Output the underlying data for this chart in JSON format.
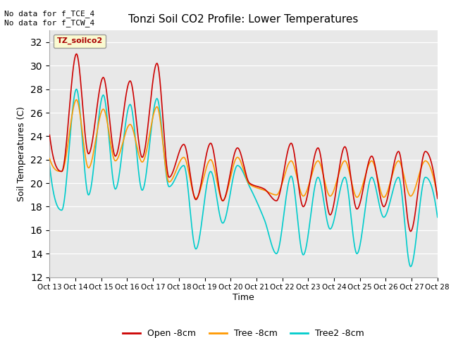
{
  "title": "Tonzi Soil CO2 Profile: Lower Temperatures",
  "xlabel": "Time",
  "ylabel": "Soil Temperatures (C)",
  "annotation_top": "No data for f_TCE_4\nNo data for f_TCW_4",
  "legend_label_box": "TZ_soilco2",
  "ylim": [
    12,
    33
  ],
  "yticks": [
    12,
    14,
    16,
    18,
    20,
    22,
    24,
    26,
    28,
    30,
    32
  ],
  "xtick_labels": [
    "Oct 13",
    "Oct 14",
    "Oct 15",
    "Oct 16",
    "Oct 17",
    "Oct 18",
    "Oct 19",
    "Oct 20",
    "Oct 21",
    "Oct 22",
    "Oct 23",
    "Oct 24",
    "Oct 25",
    "Oct 26",
    "Oct 27",
    "Oct 28"
  ],
  "plot_bg_color": "#e8e8e8",
  "fig_bg_color": "#ffffff",
  "line_colors": {
    "open": "#cc0000",
    "tree": "#ff9900",
    "tree2": "#00cccc"
  },
  "line_labels": {
    "open": "Open -8cm",
    "tree": "Tree -8cm",
    "tree2": "Tree2 -8cm"
  },
  "open_data": [
    24.1,
    21.0,
    31.0,
    22.5,
    29.0,
    22.3,
    28.7,
    22.2,
    30.2,
    20.5,
    23.3,
    18.6,
    23.4,
    18.5,
    23.0,
    20.0,
    19.5,
    18.5,
    23.4,
    18.0,
    23.0,
    17.3,
    23.1,
    17.8,
    22.3,
    18.0,
    22.7,
    15.9,
    22.7,
    18.7
  ],
  "tree_data": [
    22.1,
    21.0,
    27.1,
    21.3,
    26.3,
    21.9,
    25.0,
    21.8,
    26.5,
    20.1,
    22.2,
    18.7,
    22.0,
    18.5,
    22.2,
    19.9,
    19.4,
    19.0,
    21.9,
    18.9,
    21.9,
    18.9,
    21.9,
    18.8,
    21.9,
    18.8,
    21.9,
    18.9,
    21.9,
    18.9
  ],
  "tree2_data": [
    21.5,
    17.7,
    28.0,
    19.0,
    27.5,
    19.5,
    26.7,
    19.4,
    27.2,
    19.7,
    21.5,
    14.4,
    21.0,
    16.6,
    21.5,
    19.7,
    16.9,
    14.0,
    20.6,
    13.9,
    20.5,
    16.1,
    20.5,
    14.0,
    20.5,
    17.1,
    20.5,
    12.9,
    20.5,
    17.1
  ]
}
